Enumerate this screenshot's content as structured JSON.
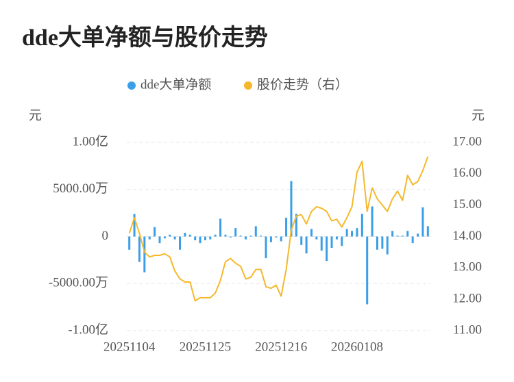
{
  "chart_data": {
    "type": "bar-line",
    "title": "dde大单净额与股价走势",
    "y_unit_label": "元",
    "y2_unit_label": "元",
    "categories": [
      "20251104",
      null,
      null,
      null,
      null,
      null,
      null,
      null,
      null,
      null,
      null,
      null,
      null,
      null,
      null,
      "20251125",
      null,
      null,
      null,
      null,
      null,
      null,
      null,
      null,
      null,
      null,
      null,
      null,
      null,
      null,
      "20251216",
      null,
      null,
      null,
      null,
      null,
      null,
      null,
      null,
      null,
      null,
      null,
      null,
      null,
      null,
      "20260108",
      null,
      null,
      null,
      null,
      null,
      null,
      null,
      null,
      null,
      null,
      null,
      null,
      null,
      null
    ],
    "series": [
      {
        "name": "dde大单净额",
        "color": "#3a9ee8",
        "kind": "bar",
        "values": [
          -1400,
          2400,
          -2700,
          -3800,
          -300,
          1000,
          -700,
          -200,
          200,
          -300,
          -1400,
          400,
          200,
          -400,
          -700,
          -400,
          -300,
          200,
          1900,
          200,
          -100,
          900,
          100,
          -300,
          100,
          1100,
          100,
          -2300,
          -600,
          -100,
          -500,
          2000,
          5900,
          2400,
          -900,
          -1800,
          800,
          -300,
          -1500,
          -2600,
          -1200,
          -300,
          -1000,
          800,
          600,
          900,
          2400,
          -7200,
          3200,
          -1400,
          -1300,
          -1900,
          600,
          100,
          100,
          600,
          -700,
          300,
          3100,
          1100
        ]
      },
      {
        "name": "股价走势（右）",
        "color": "#f5b82a",
        "kind": "line",
        "axis": "y2",
        "values": [
          14.1,
          14.6,
          14.1,
          13.5,
          13.35,
          13.4,
          13.4,
          13.45,
          13.35,
          12.9,
          12.65,
          12.55,
          12.55,
          11.95,
          12.05,
          12.05,
          12.05,
          12.2,
          12.6,
          13.2,
          13.3,
          13.15,
          13.05,
          12.65,
          12.7,
          12.95,
          12.95,
          12.4,
          12.35,
          12.45,
          12.1,
          12.95,
          14.2,
          14.65,
          14.7,
          14.4,
          14.8,
          14.95,
          14.9,
          14.8,
          14.5,
          14.55,
          14.3,
          14.6,
          14.95,
          16.05,
          16.4,
          14.8,
          15.55,
          15.2,
          15.0,
          14.8,
          15.2,
          15.45,
          15.15,
          15.95,
          15.65,
          15.75,
          16.1,
          16.55
        ]
      }
    ],
    "ylim": [
      -10000,
      10000
    ],
    "yticks": [
      {
        "value": 10000,
        "label": "1.00亿"
      },
      {
        "value": 5000,
        "label": "5000.00万"
      },
      0,
      {
        "value": -5000,
        "label": "-5000.00万"
      },
      {
        "value": -10000,
        "label": "-1.00亿"
      }
    ],
    "y2lim": [
      11,
      17
    ],
    "y2ticks": [
      {
        "value": 17,
        "label": "17.00"
      },
      {
        "value": 16,
        "label": "16.00"
      },
      {
        "value": 15,
        "label": "15.00"
      },
      {
        "value": 14,
        "label": "14.00"
      },
      {
        "value": 13,
        "label": "13.00"
      },
      {
        "value": 12,
        "label": "12.00"
      },
      {
        "value": 11,
        "label": "11.00"
      }
    ],
    "grid": true,
    "legend": "top"
  }
}
